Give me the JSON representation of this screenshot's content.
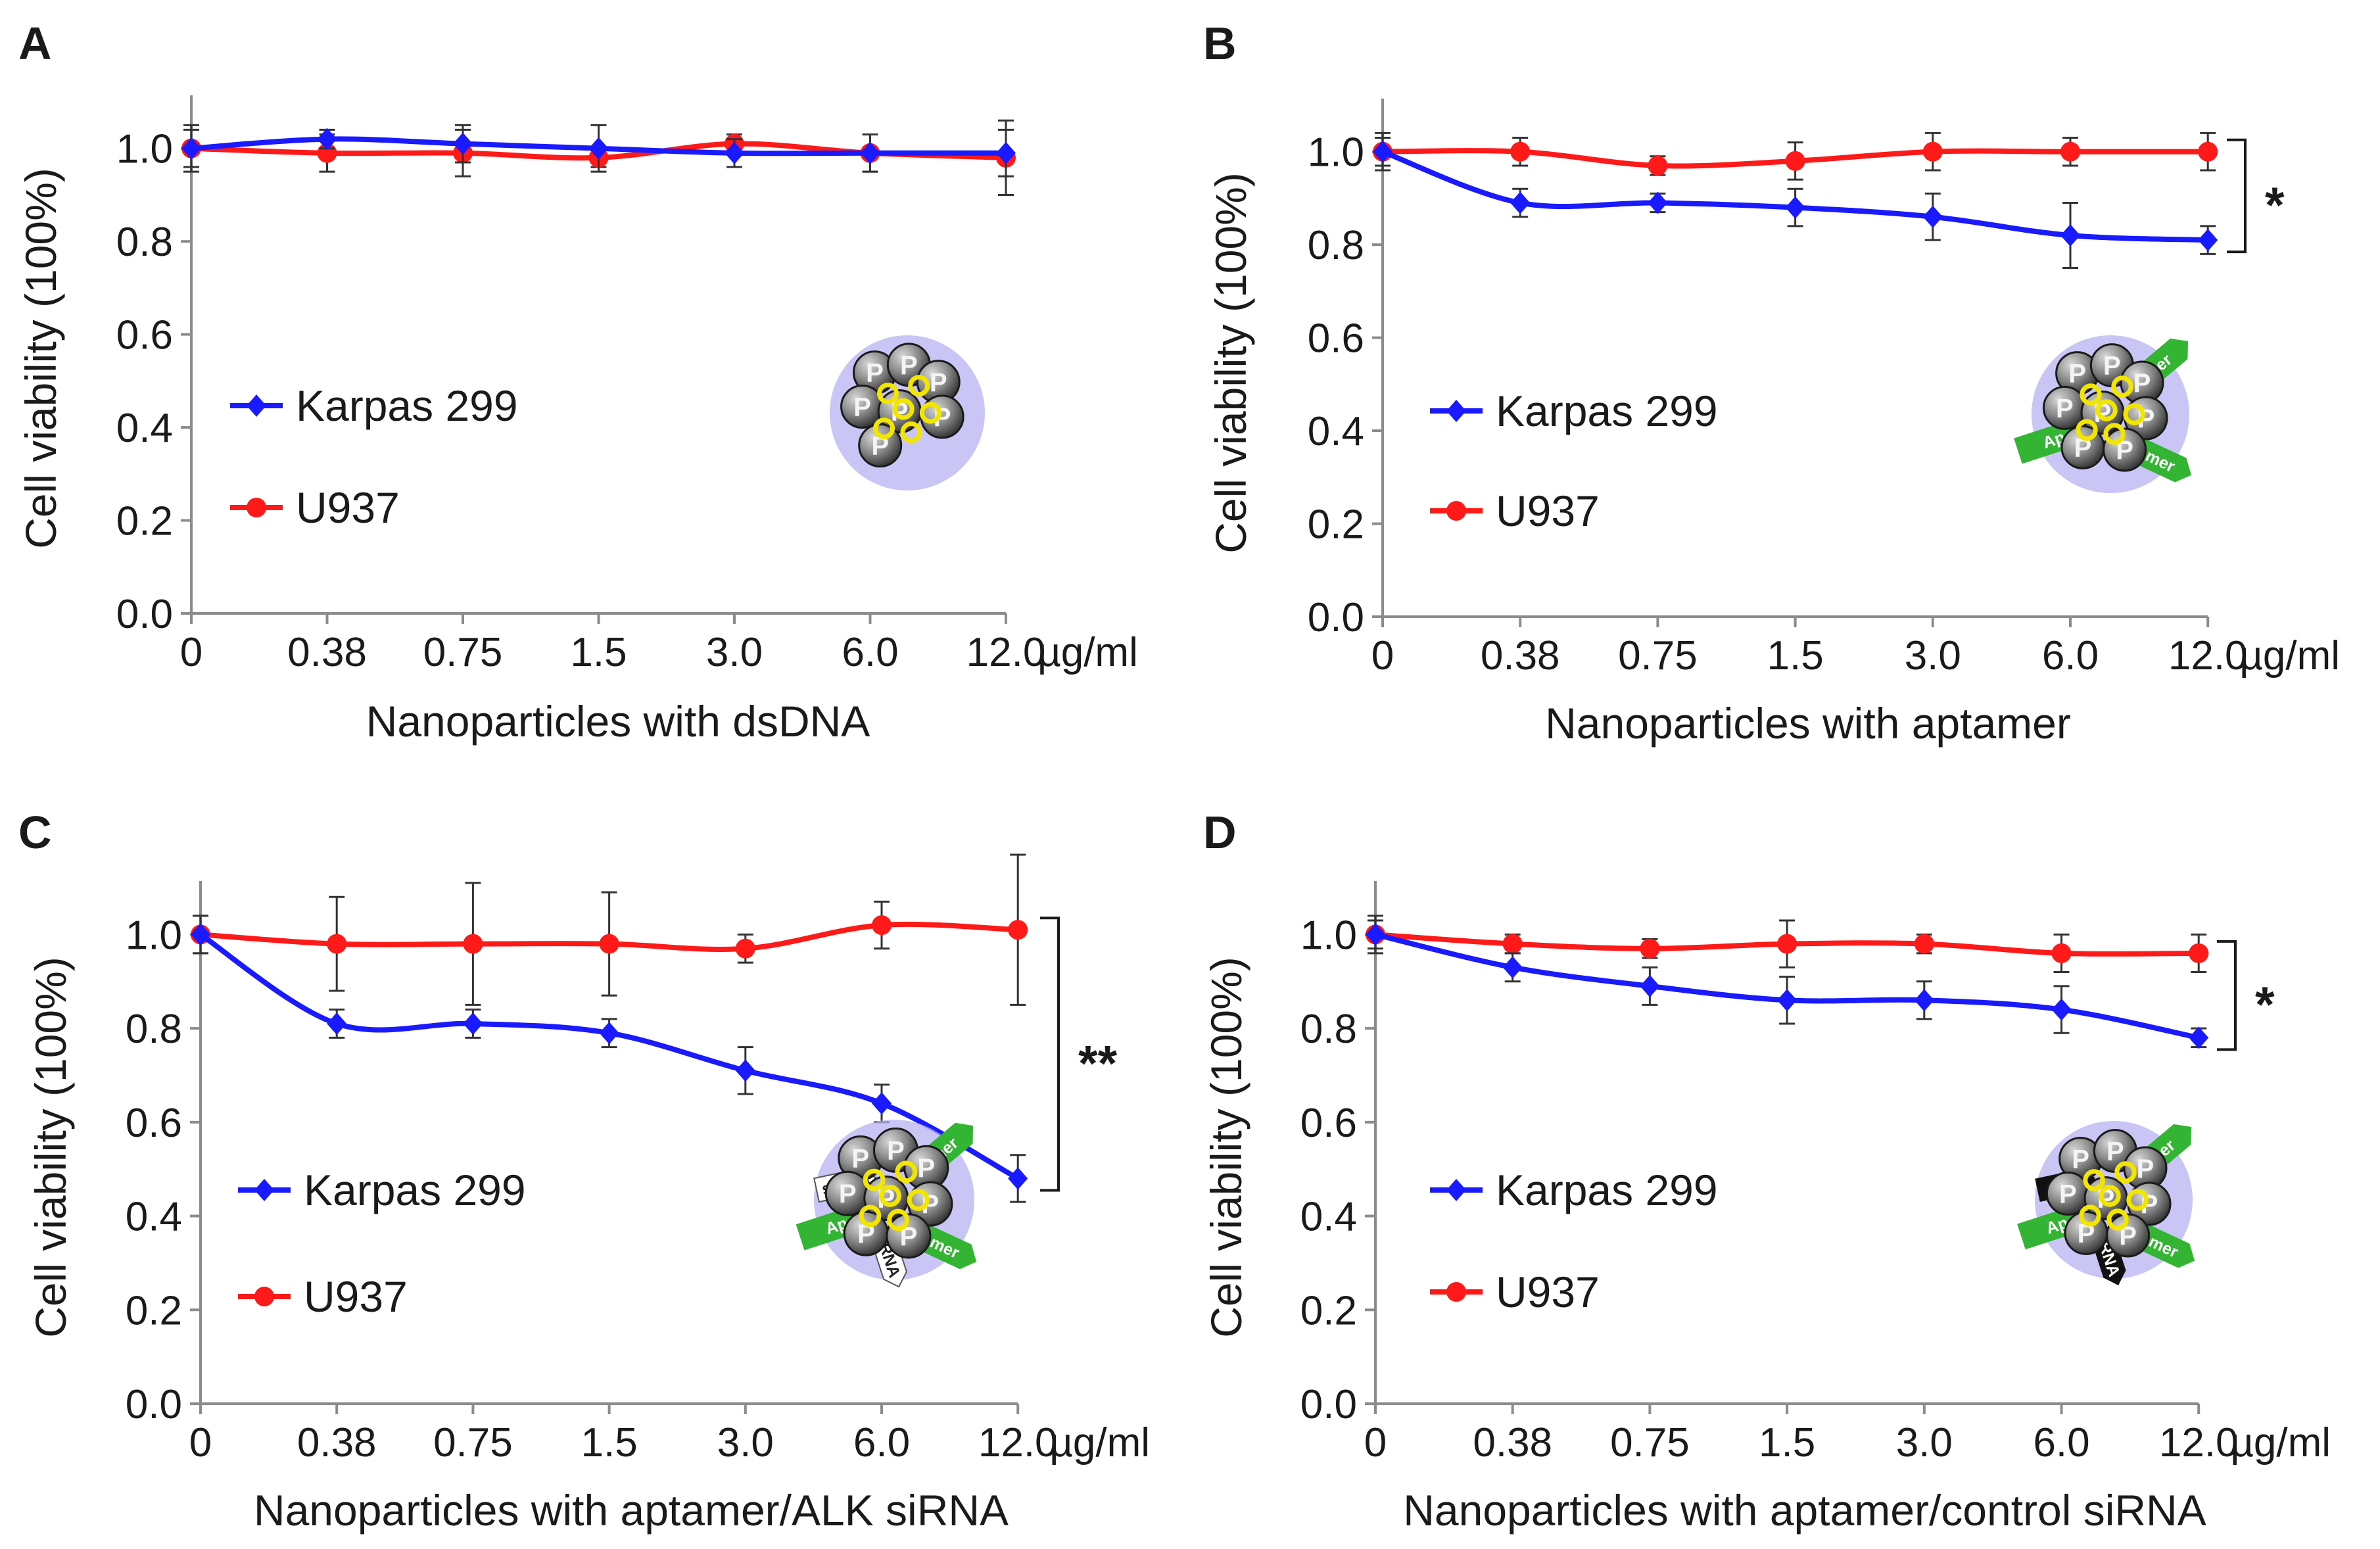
{
  "colors": {
    "karpas": "#1a1aff",
    "u937": "#ff1a1a",
    "axis": "#8c8c8c",
    "halo": "#b7b2f0",
    "aptamer": "#33b533",
    "linker": "#f2e600",
    "sirna_alk": "#ffffff",
    "sirna_control": "#111111"
  },
  "chart_data": [
    {
      "panel": "A",
      "type": "line",
      "title": "",
      "categories": [
        "0",
        "0.38",
        "0.75",
        "1.5",
        "3.0",
        "6.0",
        "12.0"
      ],
      "unit": "µg/ml",
      "xlabel": "Nanoparticles with dsDNA",
      "ylabel": "Cell viability (100%)",
      "ylim": [
        0,
        1.1
      ],
      "yticks": [
        "0.0",
        "0.2",
        "0.4",
        "0.6",
        "0.8",
        "1.0"
      ],
      "series": [
        {
          "name": "Karpas 299",
          "marker": "diamond",
          "values": [
            1.0,
            1.02,
            1.01,
            1.0,
            0.99,
            0.99,
            0.99
          ],
          "errors": [
            0.05,
            0.02,
            0.04,
            0.05,
            0.03,
            0.04,
            0.05
          ]
        },
        {
          "name": "U937",
          "marker": "circle",
          "values": [
            1.0,
            0.99,
            0.99,
            0.98,
            1.01,
            0.99,
            0.98
          ],
          "errors": [
            0.04,
            0.04,
            0.05,
            0.02,
            0.02,
            0.04,
            0.08
          ]
        }
      ],
      "significance": "",
      "particle": {
        "aptamer": false,
        "sirna": "none",
        "strand_labels": [],
        "bead_labels": [
          "P",
          "P",
          "P",
          "P",
          "P",
          "P",
          "P"
        ]
      }
    },
    {
      "panel": "B",
      "type": "line",
      "title": "",
      "categories": [
        "0",
        "0.38",
        "0.75",
        "1.5",
        "3.0",
        "6.0",
        "12.0"
      ],
      "unit": "µg/ml",
      "xlabel": "Nanoparticles with aptamer",
      "ylabel": "Cell viability (100%)",
      "ylim": [
        0,
        1.1
      ],
      "yticks": [
        "0.0",
        "0.2",
        "0.4",
        "0.6",
        "0.8",
        "1.0"
      ],
      "series": [
        {
          "name": "Karpas 299",
          "marker": "diamond",
          "values": [
            1.0,
            0.89,
            0.89,
            0.88,
            0.86,
            0.82,
            0.81
          ],
          "errors": [
            0.04,
            0.03,
            0.02,
            0.04,
            0.05,
            0.07,
            0.03
          ]
        },
        {
          "name": "U937",
          "marker": "circle",
          "values": [
            1.0,
            1.0,
            0.97,
            0.98,
            1.0,
            1.0,
            1.0
          ],
          "errors": [
            0.03,
            0.03,
            0.02,
            0.04,
            0.04,
            0.03,
            0.04
          ]
        }
      ],
      "significance": "*",
      "particle": {
        "aptamer": true,
        "sirna": "none",
        "strand_labels": [
          "Ap",
          "ner",
          "tamer"
        ],
        "bead_labels": [
          "P",
          "P",
          "P",
          "P",
          "P",
          "P",
          "P",
          "P"
        ]
      }
    },
    {
      "panel": "C",
      "type": "line",
      "title": "",
      "categories": [
        "0",
        "0.38",
        "0.75",
        "1.5",
        "3.0",
        "6.0",
        "12.0"
      ],
      "unit": "µg/ml",
      "xlabel": "Nanoparticles with aptamer/ALK siRNA",
      "ylabel": "Cell viability (100%)",
      "ylim": [
        0,
        1.1
      ],
      "yticks": [
        "0.0",
        "0.2",
        "0.4",
        "0.6",
        "0.8",
        "1.0"
      ],
      "series": [
        {
          "name": "Karpas 299",
          "marker": "diamond",
          "values": [
            1.0,
            0.81,
            0.81,
            0.79,
            0.71,
            0.64,
            0.48
          ],
          "errors": [
            0.04,
            0.03,
            0.03,
            0.03,
            0.05,
            0.04,
            0.05
          ]
        },
        {
          "name": "U937",
          "marker": "circle",
          "values": [
            1.0,
            0.98,
            0.98,
            0.98,
            0.97,
            1.02,
            1.01
          ],
          "errors": [
            0.04,
            0.1,
            0.13,
            0.11,
            0.03,
            0.05,
            0.16
          ]
        }
      ],
      "significance": "**",
      "particle": {
        "aptamer": true,
        "sirna": "light",
        "strand_labels": [
          "Ap",
          "mer",
          "tamer",
          "siRNA",
          "RNA"
        ],
        "bead_labels": [
          "P",
          "P",
          "P",
          "P",
          "P",
          "P",
          "P",
          "P"
        ]
      }
    },
    {
      "panel": "D",
      "type": "line",
      "title": "",
      "categories": [
        "0",
        "0.38",
        "0.75",
        "1.5",
        "3.0",
        "6.0",
        "12.0"
      ],
      "unit": "µg/ml",
      "xlabel": "Nanoparticles with aptamer/control siRNA",
      "ylabel": "Cell viability (100%)",
      "ylim": [
        0,
        1.1
      ],
      "yticks": [
        "0.0",
        "0.2",
        "0.4",
        "0.6",
        "0.8",
        "1.0"
      ],
      "series": [
        {
          "name": "Karpas 299",
          "marker": "diamond",
          "values": [
            1.0,
            0.93,
            0.89,
            0.86,
            0.86,
            0.84,
            0.78
          ],
          "errors": [
            0.04,
            0.03,
            0.04,
            0.05,
            0.04,
            0.05,
            0.02
          ]
        },
        {
          "name": "U937",
          "marker": "circle",
          "values": [
            1.0,
            0.98,
            0.97,
            0.98,
            0.98,
            0.96,
            0.96
          ],
          "errors": [
            0.03,
            0.02,
            0.02,
            0.05,
            0.02,
            0.04,
            0.04
          ]
        }
      ],
      "significance": "*",
      "particle": {
        "aptamer": true,
        "sirna": "dark",
        "strand_labels": [
          "Ap",
          "ner",
          "tamer",
          "siRN",
          "RNA"
        ],
        "bead_labels": [
          "P",
          "P",
          "P",
          "P",
          "P",
          "P",
          "P",
          "P"
        ]
      }
    }
  ]
}
